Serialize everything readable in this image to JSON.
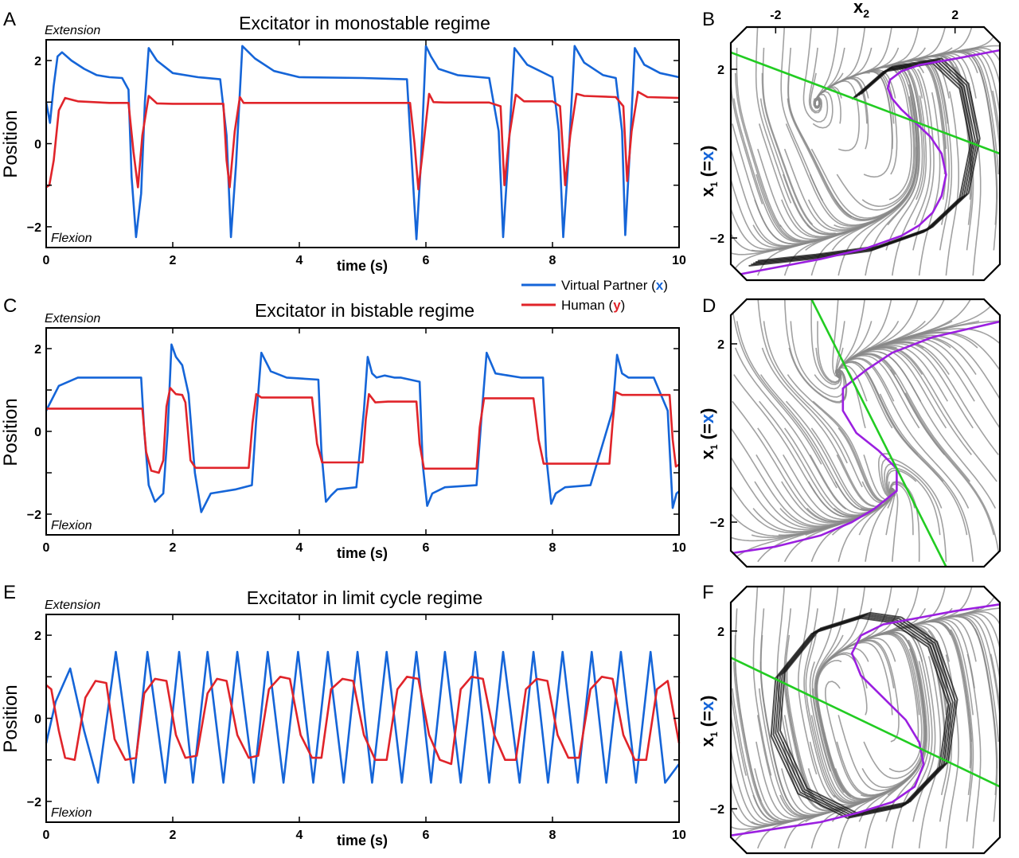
{
  "panel_letters": [
    "A",
    "B",
    "C",
    "D",
    "E",
    "F"
  ],
  "annotations": {
    "extension": "Extension",
    "flexion": "Flexion"
  },
  "legend": {
    "items": [
      {
        "label": "Virtual Partner (",
        "var": "x",
        "close": ")",
        "color": "#1565d8"
      },
      {
        "label": "Human (",
        "var": "y",
        "close": ")",
        "color": "#e0242a"
      }
    ]
  },
  "phase_axes": {
    "x2_label": "x",
    "x2_sub": "2",
    "x1_label": "x",
    "x1_sub": "1",
    "x1_paren_open": " (=",
    "x1_var": "x",
    "x1_paren_close": ")"
  },
  "colors": {
    "partner": "#1565d8",
    "human": "#e0242a",
    "nullcline_cubic": "#9b1fe0",
    "nullcline_linear": "#22cc22",
    "flow": "#8a8a8a"
  },
  "chart_data": [
    {
      "type": "line",
      "title": "Excitator in monostable regime",
      "xlabel": "time (s)",
      "ylabel": "Position",
      "xlim": [
        0,
        10
      ],
      "ylim": [
        -2.5,
        2.5
      ],
      "xticks": [
        0,
        2,
        4,
        6,
        8,
        10
      ],
      "yticks": [
        -2,
        0,
        2
      ],
      "series": [
        {
          "name": "Virtual Partner (x)",
          "color": "#1565d8",
          "x": [
            0.0,
            0.06,
            0.12,
            0.18,
            0.25,
            0.4,
            0.6,
            0.8,
            1.0,
            1.2,
            1.3,
            1.35,
            1.42,
            1.5,
            1.56,
            1.62,
            1.75,
            2.0,
            2.4,
            2.75,
            2.85,
            2.92,
            3.0,
            3.1,
            3.3,
            3.6,
            4.0,
            5.0,
            5.7,
            5.78,
            5.85,
            5.92,
            6.0,
            6.08,
            6.2,
            6.5,
            7.0,
            7.15,
            7.22,
            7.3,
            7.4,
            7.6,
            8.0,
            8.1,
            8.17,
            8.25,
            8.35,
            8.5,
            8.8,
            9.0,
            9.1,
            9.15,
            9.22,
            9.3,
            9.45,
            9.7,
            10.0
          ],
          "y": [
            1.0,
            0.5,
            1.4,
            2.1,
            2.2,
            2.0,
            1.8,
            1.65,
            1.6,
            1.58,
            1.3,
            -0.8,
            -2.25,
            -1.2,
            1.0,
            2.3,
            2.0,
            1.7,
            1.6,
            1.55,
            0.2,
            -2.25,
            -0.5,
            2.35,
            2.05,
            1.75,
            1.6,
            1.58,
            1.55,
            -0.5,
            -2.3,
            -0.5,
            2.35,
            2.1,
            1.8,
            1.65,
            1.58,
            0.3,
            -2.25,
            -0.3,
            2.3,
            1.9,
            1.6,
            0.3,
            -2.25,
            -0.4,
            2.35,
            1.95,
            1.65,
            1.58,
            0.3,
            -2.2,
            -0.2,
            2.3,
            1.9,
            1.7,
            1.6
          ]
        },
        {
          "name": "Human (y)",
          "color": "#e0242a",
          "x": [
            0.0,
            0.05,
            0.12,
            0.2,
            0.3,
            0.5,
            1.0,
            1.3,
            1.38,
            1.45,
            1.52,
            1.62,
            1.75,
            2.0,
            2.5,
            2.8,
            2.85,
            2.9,
            2.98,
            3.06,
            3.12,
            3.25,
            4.0,
            5.0,
            5.75,
            5.82,
            5.88,
            5.95,
            6.05,
            6.12,
            6.3,
            7.0,
            7.18,
            7.24,
            7.32,
            7.42,
            7.55,
            8.0,
            8.12,
            8.2,
            8.28,
            8.38,
            8.5,
            9.0,
            9.12,
            9.18,
            9.25,
            9.35,
            9.5,
            10.0
          ],
          "y": [
            -1.05,
            -1.0,
            -0.4,
            0.8,
            1.1,
            1.02,
            0.98,
            0.98,
            -0.2,
            -1.05,
            0.2,
            1.15,
            0.97,
            0.96,
            0.96,
            0.96,
            -0.4,
            -1.05,
            0.3,
            1.12,
            0.98,
            0.98,
            0.98,
            0.98,
            0.98,
            0.0,
            -1.1,
            -0.2,
            1.2,
            1.0,
            0.99,
            0.99,
            0.9,
            -1.0,
            0.2,
            1.18,
            1.02,
            1.02,
            0.9,
            -1.0,
            0.2,
            1.2,
            1.15,
            1.12,
            0.9,
            -0.9,
            0.3,
            1.25,
            1.12,
            1.1
          ]
        }
      ]
    },
    {
      "type": "line",
      "title": "Excitator in bistable regime",
      "xlabel": "time (s)",
      "ylabel": "Position",
      "xlim": [
        0,
        10
      ],
      "ylim": [
        -2.5,
        2.5
      ],
      "xticks": [
        0,
        2,
        4,
        6,
        8,
        10
      ],
      "yticks": [
        -2,
        0,
        2
      ],
      "series": [
        {
          "name": "Virtual Partner (x)",
          "color": "#1565d8",
          "x": [
            0.0,
            0.2,
            0.5,
            1.0,
            1.5,
            1.55,
            1.62,
            1.72,
            1.85,
            1.92,
            1.98,
            2.05,
            2.15,
            2.25,
            2.35,
            2.45,
            2.6,
            3.0,
            3.25,
            3.32,
            3.4,
            3.55,
            3.8,
            4.3,
            4.35,
            4.42,
            4.5,
            4.6,
            4.9,
            5.02,
            5.08,
            5.15,
            5.22,
            5.35,
            5.5,
            5.6,
            5.9,
            5.95,
            6.02,
            6.1,
            6.3,
            6.8,
            6.88,
            6.96,
            7.1,
            7.5,
            7.85,
            7.9,
            7.98,
            8.05,
            8.2,
            8.6,
            8.95,
            9.02,
            9.1,
            9.2,
            9.6,
            9.82,
            9.9,
            9.96,
            10.0
          ],
          "y": [
            0.5,
            1.1,
            1.3,
            1.3,
            1.3,
            0.0,
            -1.3,
            -1.7,
            -1.5,
            0.0,
            2.1,
            1.8,
            1.6,
            0.9,
            -1.0,
            -1.95,
            -1.5,
            -1.4,
            -1.3,
            0.3,
            1.9,
            1.45,
            1.3,
            1.25,
            -0.5,
            -1.7,
            -1.55,
            -1.4,
            -1.35,
            0.5,
            1.8,
            1.4,
            1.3,
            1.35,
            1.3,
            1.3,
            1.2,
            -0.8,
            -1.8,
            -1.5,
            -1.35,
            -1.3,
            0.4,
            1.9,
            1.4,
            1.3,
            1.3,
            -0.6,
            -1.75,
            -1.5,
            -1.35,
            -1.3,
            0.5,
            1.85,
            1.4,
            1.3,
            1.3,
            0.5,
            -1.85,
            -1.5,
            -1.45
          ]
        },
        {
          "name": "Human (y)",
          "color": "#e0242a",
          "x": [
            0.0,
            1.5,
            1.52,
            1.58,
            1.66,
            1.78,
            1.85,
            1.9,
            1.96,
            2.05,
            2.15,
            2.2,
            2.28,
            2.36,
            2.5,
            3.2,
            3.26,
            3.32,
            3.4,
            4.2,
            4.28,
            4.36,
            4.5,
            5.0,
            5.05,
            5.1,
            5.2,
            5.4,
            5.85,
            5.9,
            5.97,
            6.1,
            6.8,
            6.85,
            6.92,
            7.1,
            7.7,
            7.78,
            7.86,
            8.0,
            8.9,
            8.95,
            9.0,
            9.1,
            9.85,
            9.9,
            9.95,
            10.0
          ],
          "y": [
            0.55,
            0.55,
            0.55,
            -0.5,
            -0.95,
            -1.0,
            -0.7,
            0.6,
            1.05,
            0.9,
            0.88,
            0.7,
            -0.7,
            -0.88,
            -0.88,
            -0.88,
            0.2,
            0.9,
            0.82,
            0.82,
            -0.3,
            -0.75,
            -0.75,
            -0.75,
            0.3,
            0.9,
            0.7,
            0.72,
            0.72,
            -0.3,
            -0.9,
            -0.9,
            -0.9,
            0.1,
            0.8,
            0.8,
            0.8,
            -0.2,
            -0.78,
            -0.78,
            -0.78,
            0.2,
            0.95,
            0.88,
            0.88,
            -0.2,
            -0.85,
            -0.8
          ]
        }
      ]
    },
    {
      "type": "line",
      "title": "Excitator in limit cycle regime",
      "xlabel": "time (s)",
      "ylabel": "Position",
      "xlim": [
        0,
        10
      ],
      "ylim": [
        -2.5,
        2.5
      ],
      "xticks": [
        0,
        2,
        4,
        6,
        8,
        10
      ],
      "yticks": [
        -2,
        0,
        2
      ],
      "series": [
        {
          "name": "Virtual Partner (x)",
          "color": "#1565d8",
          "x": [
            0.0,
            0.15,
            0.38,
            0.6,
            0.82,
            1.1,
            1.38,
            1.6,
            1.88,
            2.1,
            2.32,
            2.55,
            2.8,
            3.02,
            3.28,
            3.5,
            3.75,
            3.98,
            4.22,
            4.45,
            4.7,
            4.92,
            5.15,
            5.38,
            5.62,
            5.85,
            6.08,
            6.3,
            6.55,
            6.78,
            7.0,
            7.22,
            7.48,
            7.7,
            7.93,
            8.16,
            8.4,
            8.62,
            8.85,
            9.08,
            9.32,
            9.55,
            9.78,
            10.0
          ],
          "y": [
            -0.6,
            0.4,
            1.2,
            -0.3,
            -1.55,
            1.6,
            -1.55,
            1.6,
            -1.55,
            1.6,
            -1.55,
            1.6,
            -1.55,
            1.6,
            -1.55,
            1.6,
            -1.55,
            1.6,
            -1.55,
            1.6,
            -1.55,
            1.6,
            -1.55,
            1.6,
            -1.55,
            1.6,
            -1.55,
            1.6,
            -1.55,
            1.6,
            -1.55,
            1.6,
            -1.55,
            1.6,
            -1.55,
            1.6,
            -1.55,
            1.6,
            -1.55,
            1.6,
            -1.55,
            1.6,
            -1.55,
            -1.1
          ]
        },
        {
          "name": "Human (y)",
          "color": "#e0242a",
          "x": [
            0.0,
            0.08,
            0.2,
            0.3,
            0.45,
            0.62,
            0.78,
            0.95,
            1.08,
            1.25,
            1.42,
            1.55,
            1.72,
            1.9,
            2.05,
            2.2,
            2.38,
            2.55,
            2.7,
            2.85,
            3.02,
            3.2,
            3.35,
            3.52,
            3.7,
            3.85,
            4.02,
            4.2,
            4.35,
            4.5,
            4.68,
            4.85,
            5.02,
            5.2,
            5.38,
            5.55,
            5.7,
            5.88,
            6.05,
            6.22,
            6.4,
            6.55,
            6.72,
            6.9,
            7.08,
            7.25,
            7.42,
            7.58,
            7.75,
            7.92,
            8.08,
            8.25,
            8.42,
            8.6,
            8.78,
            8.95,
            9.12,
            9.3,
            9.48,
            9.65,
            9.82,
            10.0
          ],
          "y": [
            0.8,
            0.7,
            -0.3,
            -0.95,
            -1.0,
            0.5,
            0.9,
            0.85,
            -0.5,
            -1.0,
            -0.95,
            0.6,
            0.95,
            0.9,
            -0.4,
            -0.95,
            -0.9,
            0.6,
            0.95,
            0.9,
            -0.4,
            -0.95,
            -0.9,
            0.7,
            1.0,
            0.95,
            -0.4,
            -0.95,
            -0.95,
            0.7,
            0.95,
            0.9,
            -0.4,
            -1.0,
            -1.0,
            0.7,
            1.0,
            0.95,
            -0.4,
            -1.0,
            -1.1,
            0.7,
            1.0,
            0.95,
            -0.4,
            -1.0,
            -1.0,
            0.7,
            0.95,
            0.9,
            -0.4,
            -0.95,
            -0.95,
            0.7,
            1.0,
            0.95,
            -0.4,
            -1.0,
            -1.0,
            0.7,
            0.9,
            -0.6
          ]
        }
      ]
    },
    {
      "type": "line",
      "title": "",
      "xlabel": "x2",
      "ylabel": "x1 (=x)",
      "xlim": [
        -3,
        3
      ],
      "ylim": [
        -3,
        3
      ],
      "xticks": [
        -2,
        2
      ],
      "yticks": [
        -2,
        2
      ],
      "series": [
        {
          "name": "",
          "color": "#9b1fe0",
          "x": [
            -3,
            -2,
            -1,
            0,
            0.8,
            1.2,
            1.5,
            1.7,
            1.8,
            1.7,
            1.45,
            1.1,
            0.8,
            0.6,
            0.5,
            0.55,
            0.8,
            1.2,
            2,
            3
          ],
          "y": [
            -2.9,
            -2.7,
            -2.5,
            -2.25,
            -1.95,
            -1.7,
            -1.4,
            -1.0,
            -0.5,
            0,
            0.4,
            0.75,
            1.05,
            1.3,
            1.55,
            1.75,
            1.95,
            2.1,
            2.25,
            2.45
          ]
        },
        {
          "name": "",
          "color": "#22cc22",
          "x": [
            -3,
            3
          ],
          "y": [
            2.4,
            0.0
          ]
        }
      ]
    },
    {
      "type": "line",
      "title": "",
      "xlabel": "",
      "ylabel": "x1 (=x)",
      "xlim": [
        -3,
        3
      ],
      "ylim": [
        -3,
        3
      ],
      "xticks": [],
      "yticks": [
        -2,
        2
      ],
      "series": [
        {
          "name": "",
          "color": "#9b1fe0",
          "x": [
            -3,
            -2,
            -1,
            -0.3,
            0.2,
            0.7,
            0.7,
            0.3,
            -0.2,
            -0.5,
            -0.5,
            0.0,
            0.6,
            1.5,
            3
          ],
          "y": [
            -2.7,
            -2.55,
            -2.3,
            -2.0,
            -1.7,
            -1.3,
            -0.8,
            -0.4,
            0.0,
            0.5,
            1.0,
            1.4,
            1.8,
            2.15,
            2.5
          ]
        },
        {
          "name": "",
          "color": "#22cc22",
          "x": [
            -1.2,
            1.8
          ],
          "y": [
            3.0,
            -3.0
          ]
        }
      ]
    },
    {
      "type": "line",
      "title": "",
      "xlabel": "",
      "ylabel": "x1 (=x)",
      "xlim": [
        -3,
        3
      ],
      "ylim": [
        -3,
        3
      ],
      "xticks": [],
      "yticks": [
        -2,
        2
      ],
      "series": [
        {
          "name": "",
          "color": "#9b1fe0",
          "x": [
            -3,
            -2,
            -1,
            -0.2,
            0.6,
            1.1,
            1.3,
            1.2,
            0.9,
            0.4,
            -0.1,
            -0.3,
            -0.1,
            0.4,
            1.2,
            2,
            3
          ],
          "y": [
            -2.6,
            -2.45,
            -2.3,
            -2.1,
            -1.85,
            -1.5,
            -1.0,
            -0.5,
            0.0,
            0.5,
            1.0,
            1.5,
            1.9,
            2.15,
            2.3,
            2.45,
            2.6
          ]
        },
        {
          "name": "",
          "color": "#22cc22",
          "x": [
            -3,
            3
          ],
          "y": [
            1.4,
            -1.5
          ]
        }
      ]
    }
  ]
}
